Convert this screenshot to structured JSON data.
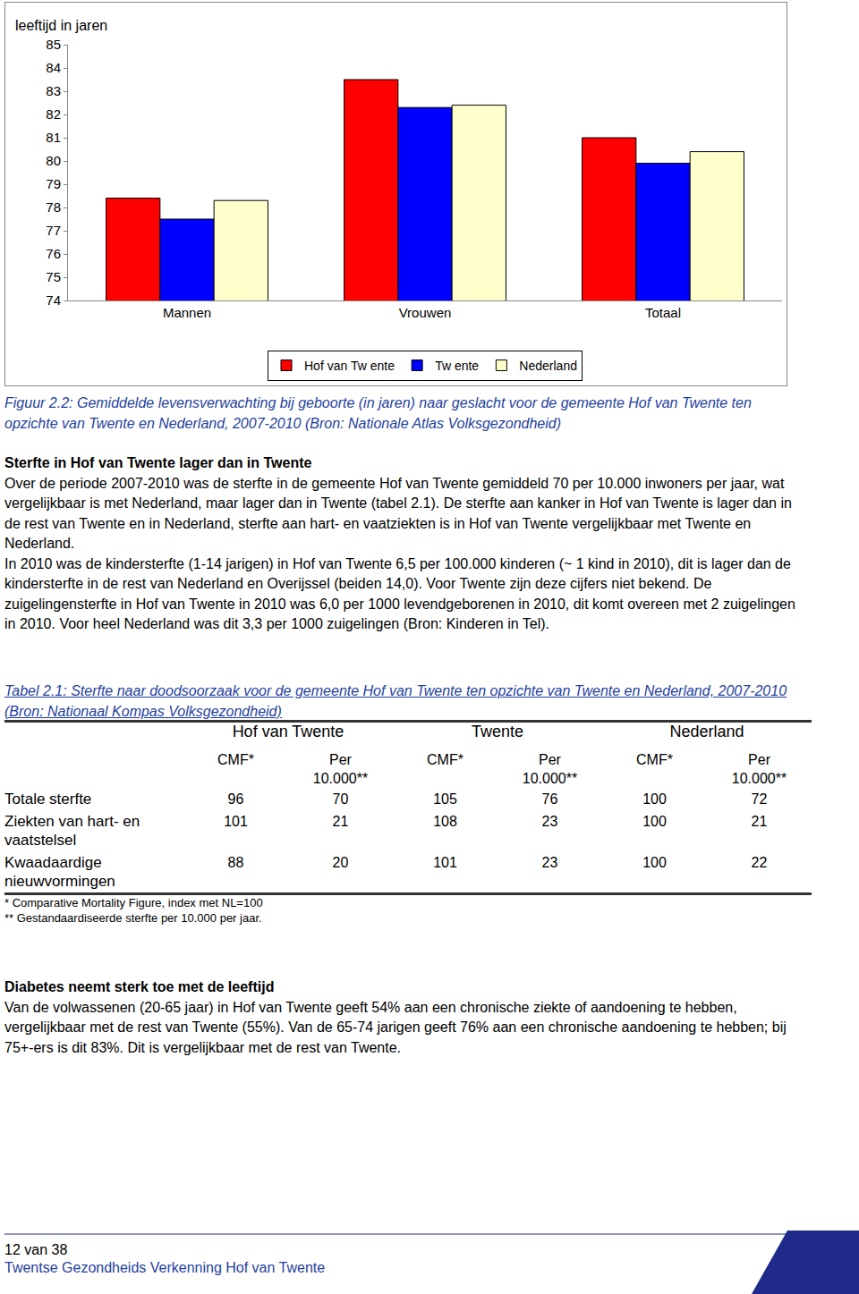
{
  "chart_data": {
    "type": "bar",
    "y_label": "leeftijd in jaren",
    "categories": [
      "Mannen",
      "Vrouwen",
      "Totaal"
    ],
    "series": [
      {
        "name": "Hof van Tw ente",
        "color": "#ff0000",
        "values": [
          78.4,
          83.5,
          81.0
        ]
      },
      {
        "name": "Tw ente",
        "color": "#0000ff",
        "values": [
          77.5,
          82.3,
          79.9
        ]
      },
      {
        "name": "Nederland",
        "color": "#ffffcc",
        "values": [
          78.3,
          82.4,
          80.4
        ]
      }
    ],
    "ylim": [
      74,
      85
    ],
    "yticks": [
      74,
      75,
      76,
      77,
      78,
      79,
      80,
      81,
      82,
      83,
      84,
      85
    ],
    "grid": false,
    "legend": "bottom"
  },
  "caption": "Figuur 2.2: Gemiddelde levensverwachting bij geboorte (in jaren) naar geslacht voor de gemeente Hof van Twente ten opzichte van Twente en Nederland, 2007-2010 (Bron: Nationale Atlas Volksgezondheid)",
  "section1": {
    "heading": "Sterfte in Hof van Twente lager dan in Twente",
    "paragraphs": [
      "Over de periode 2007-2010 was de sterfte in de gemeente Hof van Twente gemiddeld 70 per 10.000 inwoners per jaar, wat vergelijkbaar is met Nederland, maar lager dan in Twente (tabel 2.1). De sterfte aan kanker in Hof van Twente is lager dan in de rest van Twente en in Nederland, sterfte aan hart- en vaatziekten is in Hof van Twente vergelijkbaar met Twente en Nederland.",
      "In 2010 was de kindersterfte (1-14 jarigen) in Hof van Twente 6,5 per 100.000 kinderen (~ 1 kind in 2010), dit is lager dan de kindersterfte in de rest van Nederland en Overijssel (beiden 14,0). Voor Twente zijn deze cijfers niet bekend. De zuigelingensterfte in Hof van Twente in 2010 was 6,0 per 1000 levendgeborenen in 2010, dit komt overeen met 2 zuigelingen in 2010. Voor heel Nederland was dit 3,3 per 1000 zuigelingen (Bron: Kinderen in Tel)."
    ]
  },
  "table": {
    "caption": "Tabel 2.1: Sterfte naar doodsoorzaak voor de gemeente Hof van Twente ten opzichte van Twente en Nederland, 2007-2010 (Bron: Nationaal Kompas Volksgezondheid)",
    "groups": [
      "Hof van Twente",
      "Twente",
      "Nederland"
    ],
    "subheaders": [
      "CMF*",
      "Per 10.000**"
    ],
    "rows": [
      [
        "Totale sterfte",
        96,
        70,
        105,
        76,
        100,
        72
      ],
      [
        "Ziekten van hart- en vaatstelsel",
        101,
        21,
        108,
        23,
        100,
        21
      ],
      [
        "Kwaadaardige nieuwvormingen",
        88,
        20,
        101,
        23,
        100,
        22
      ]
    ],
    "footnotes": [
      "* Comparative Mortality Figure, index met NL=100",
      "** Gestandaardiseerde sterfte per 10.000 per jaar."
    ]
  },
  "section2": {
    "heading": "Diabetes neemt sterk toe met de leeftijd",
    "paragraphs": [
      "Van de volwassenen (20-65 jaar) in Hof van Twente geeft 54% aan een chronische ziekte of aandoening te hebben, vergelijkbaar met de rest van Twente (55%). Van de 65-74 jarigen geeft 76% aan een chronische aandoening te hebben; bij 75+-ers is dit 83%. Dit is vergelijkbaar met de rest van Twente."
    ]
  },
  "footer": {
    "page": "12 van 38",
    "title": "Twentse Gezondheids Verkenning Hof van Twente"
  }
}
